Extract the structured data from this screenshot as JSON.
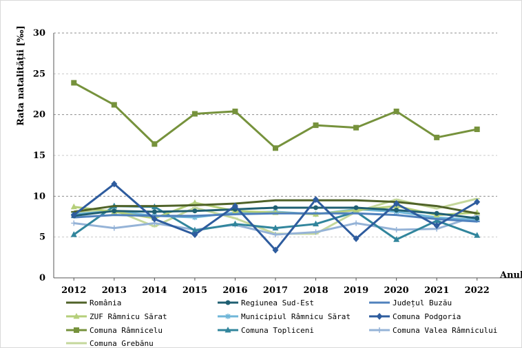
{
  "chart_data": {
    "type": "line",
    "title": "",
    "ylabel": "Rata natalității [‰]",
    "xlabel": "Anul",
    "ylim": [
      0,
      30
    ],
    "yticks": [
      0,
      5,
      10,
      15,
      20,
      25,
      30
    ],
    "grid": "horizontal dashed",
    "legend_position": "bottom",
    "x": [
      "2012",
      "2013",
      "2014",
      "2015",
      "2016",
      "2017",
      "2018",
      "2019",
      "2020",
      "2021",
      "2022"
    ],
    "series": [
      {
        "name": "România",
        "color": "#4f6228",
        "marker": "line",
        "values": [
          8.1,
          8.8,
          8.8,
          8.9,
          9.1,
          9.5,
          9.5,
          9.5,
          9.3,
          8.8,
          7.9
        ]
      },
      {
        "name": "Regiunea Sud-Est",
        "color": "#1f5f72",
        "marker": "circle",
        "values": [
          7.6,
          8.2,
          8.1,
          8.2,
          8.4,
          8.6,
          8.6,
          8.6,
          8.3,
          7.9,
          7.3
        ]
      },
      {
        "name": "Județul Buzău",
        "color": "#4f81bd",
        "marker": "line",
        "values": [
          7.4,
          7.7,
          7.6,
          7.6,
          7.8,
          7.9,
          7.9,
          7.9,
          7.7,
          7.2,
          6.9
        ]
      },
      {
        "name": "ZUF Râmnicu Sărat",
        "color": "#b5cf7a",
        "marker": "triangle",
        "values": [
          8.7,
          8.1,
          7.3,
          9.2,
          8.2,
          8.0,
          7.8,
          8.3,
          8.8,
          7.7,
          8.0
        ]
      },
      {
        "name": "Municipiul Râmnicu Sărat",
        "color": "#6fb6d8",
        "marker": "star",
        "values": [
          7.8,
          8.2,
          7.6,
          7.4,
          8.0,
          8.1,
          7.8,
          8.4,
          8.1,
          7.4,
          7.1
        ]
      },
      {
        "name": "Comuna Podgoria",
        "color": "#2e5c9e",
        "marker": "diamond",
        "values": [
          7.7,
          11.5,
          7.2,
          5.3,
          8.8,
          3.4,
          9.6,
          4.8,
          9.1,
          6.4,
          9.3
        ]
      },
      {
        "name": "Comuna Râmnicelu",
        "color": "#76923c",
        "marker": "square",
        "values": [
          23.9,
          21.2,
          16.4,
          20.1,
          20.4,
          15.9,
          18.7,
          18.4,
          20.4,
          17.2,
          18.2
        ]
      },
      {
        "name": "Comuna Topliceni",
        "color": "#31859c",
        "marker": "triangle",
        "values": [
          5.3,
          8.8,
          8.7,
          5.8,
          6.6,
          6.1,
          6.6,
          8.1,
          4.7,
          7.0,
          5.2
        ]
      },
      {
        "name": "Comuna Valea Râmnicului",
        "color": "#95b3d7",
        "marker": "cross",
        "values": [
          6.7,
          6.1,
          6.7,
          5.9,
          6.5,
          5.3,
          5.6,
          6.7,
          5.9,
          6.0,
          7.6
        ]
      },
      {
        "name": "Comuna Grebănu",
        "color": "#c4d79b",
        "marker": "line",
        "values": [
          8.0,
          8.3,
          6.3,
          8.6,
          7.3,
          5.4,
          5.4,
          8.1,
          9.6,
          8.5,
          9.7
        ]
      }
    ]
  }
}
